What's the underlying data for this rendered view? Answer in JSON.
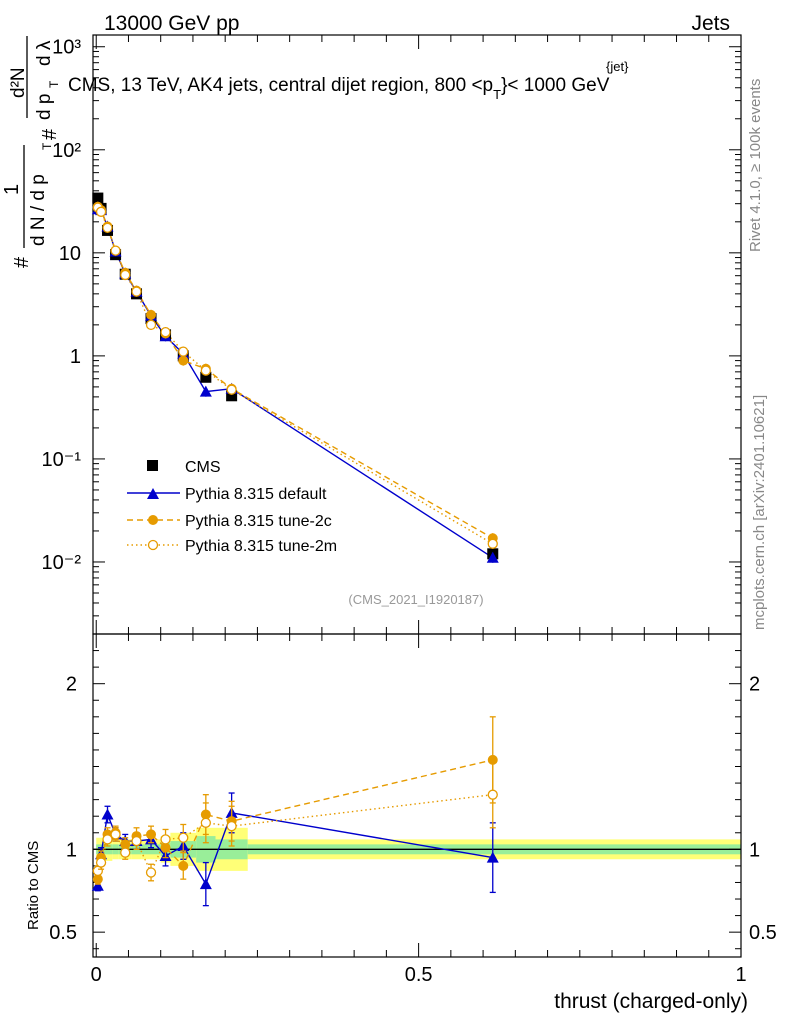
{
  "header": {
    "left": "13000 GeV pp",
    "right": "Jets",
    "title_main": "CMS, 13 TeV, AK4 jets, central dijet region, 800 <p",
    "title_sub": "T",
    "title_sup": "{jet}",
    "title_end": "}< 1000 GeV"
  },
  "side": {
    "rivet": "Rivet 4.1.0, ≥ 100k events",
    "mcplots": "mcplots.cern.ch [arXiv:2401.10621]"
  },
  "watermark": "(CMS_2021_I1920187)",
  "colors": {
    "cms": "#000000",
    "default": "#0000cc",
    "tune2c": "#e69b00",
    "tune2m": "#e69b00",
    "band_inner": "#99ee99",
    "band_outer": "#ffff77"
  },
  "chart_data": [
    {
      "type": "line",
      "yscale": "log",
      "title": "CMS, 13 TeV, AK4 jets, central dijet region, 800 <p_T^{jet}< 1000 GeV",
      "ylabel_parts": {
        "hash1": "#",
        "one": "1",
        "dN": "d N / d p",
        "T": "T",
        "hash2": "#",
        "d2N": "d²N",
        "dpT": "d p",
        "dlam": "d λ",
        "Tsub": "T"
      },
      "ylim": [
        0.002,
        1300
      ],
      "xlim": [
        -0.005,
        1.0
      ],
      "yticks": [
        {
          "value": 1000,
          "label": "10³"
        },
        {
          "value": 100,
          "label": "10²"
        },
        {
          "value": 10,
          "label": "10"
        },
        {
          "value": 1,
          "label": "1"
        },
        {
          "value": 0.1,
          "label": "10⁻¹"
        },
        {
          "value": 0.01,
          "label": "10⁻²"
        }
      ],
      "x": [
        0.0025,
        0.0075,
        0.0175,
        0.03,
        0.045,
        0.0625,
        0.085,
        0.1075,
        0.135,
        0.17,
        0.21,
        0.615
      ],
      "series": [
        {
          "name": "CMS",
          "marker": "square",
          "values": [
            34.0,
            27.0,
            16.5,
            9.6,
            6.2,
            4.0,
            2.3,
            1.6,
            1.0,
            0.62,
            0.41,
            0.012
          ]
        },
        {
          "name": "Pythia 8.315 default",
          "marker": "triangle",
          "style": "solid",
          "values": [
            26.5,
            26.0,
            18.0,
            10.3,
            6.3,
            4.2,
            2.45,
            1.55,
            1.05,
            0.45,
            0.48,
            0.011
          ]
        },
        {
          "name": "Pythia 8.315 tune-2c",
          "marker": "circle",
          "style": "dashed",
          "values": [
            28.0,
            26.0,
            18.0,
            10.5,
            6.4,
            4.3,
            2.5,
            1.65,
            0.9,
            0.75,
            0.48,
            0.017
          ]
        },
        {
          "name": "Pythia 8.315 tune-2m",
          "marker": "open-circle",
          "style": "dotted",
          "values": [
            27.5,
            25.0,
            17.5,
            10.5,
            6.1,
            4.2,
            2.0,
            1.7,
            1.1,
            0.72,
            0.47,
            0.015
          ]
        }
      ]
    },
    {
      "type": "line",
      "ylabel": "Ratio to CMS",
      "xlabel": "thrust (charged-only)",
      "ylim": [
        0.35,
        2.3
      ],
      "xlim": [
        -0.005,
        1.0
      ],
      "yticks": [
        {
          "value": 0.5,
          "label": "0.5"
        },
        {
          "value": 1,
          "label": "1"
        },
        {
          "value": 2,
          "label": "2"
        }
      ],
      "xticks": [
        {
          "value": 0,
          "label": "0"
        },
        {
          "value": 0.5,
          "label": "0.5"
        },
        {
          "value": 1,
          "label": "1"
        }
      ],
      "x": [
        0.0025,
        0.0075,
        0.0175,
        0.03,
        0.045,
        0.0625,
        0.085,
        0.1075,
        0.135,
        0.17,
        0.21,
        0.615
      ],
      "band_edges": [
        0,
        0.005,
        0.01,
        0.025,
        0.035,
        0.055,
        0.07,
        0.1,
        0.115,
        0.155,
        0.185,
        0.235,
        1.0
      ],
      "band_inner_halfwidth": [
        0.03,
        0.03,
        0.03,
        0.03,
        0.03,
        0.03,
        0.03,
        0.04,
        0.05,
        0.08,
        0.06,
        0.03
      ],
      "band_outer_halfwidth": [
        0.07,
        0.07,
        0.07,
        0.06,
        0.06,
        0.06,
        0.06,
        0.08,
        0.1,
        0.13,
        0.13,
        0.06
      ],
      "series": [
        {
          "name": "Pythia 8.315 default",
          "values": [
            0.78,
            0.97,
            1.21,
            1.09,
            1.05,
            1.05,
            1.06,
            0.96,
            1.02,
            0.79,
            1.22,
            0.95
          ],
          "errors": [
            0.03,
            0.04,
            0.05,
            0.04,
            0.04,
            0.05,
            0.05,
            0.06,
            0.08,
            0.13,
            0.12,
            0.21
          ]
        },
        {
          "name": "Pythia 8.315 tune-2c",
          "values": [
            0.82,
            0.95,
            1.09,
            1.1,
            1.03,
            1.08,
            1.09,
            1.01,
            0.9,
            1.21,
            1.17,
            1.54
          ],
          "errors": [
            0.03,
            0.04,
            0.04,
            0.04,
            0.04,
            0.05,
            0.05,
            0.06,
            0.08,
            0.12,
            0.12,
            0.26
          ]
        },
        {
          "name": "Pythia 8.315 tune-2m",
          "values": [
            0.87,
            0.92,
            1.06,
            1.09,
            0.98,
            1.05,
            0.86,
            1.06,
            1.07,
            1.16,
            1.14,
            1.33
          ],
          "errors": [
            0.03,
            0.04,
            0.04,
            0.04,
            0.04,
            0.05,
            0.05,
            0.06,
            0.08,
            0.12,
            0.12,
            0.2
          ]
        }
      ]
    }
  ]
}
